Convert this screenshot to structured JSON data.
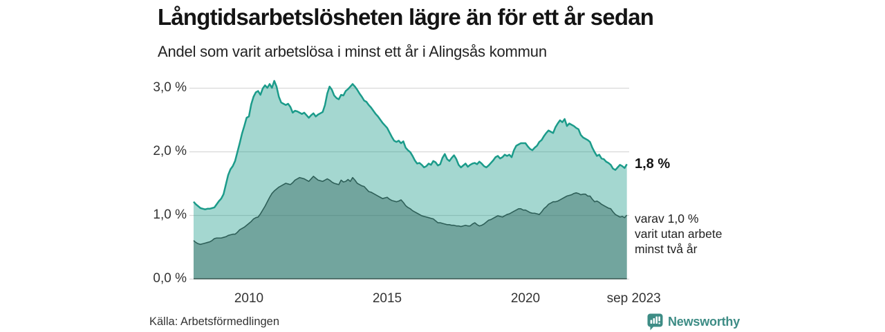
{
  "header": {
    "title": "Långtidsarbetslösheten lägre än för ett år sedan",
    "subtitle": "Andel som varit arbetslösa i minst ett år i Alingsås kommun"
  },
  "chart_data": {
    "type": "area",
    "title": "Långtidsarbetslösheten lägre än för ett år sedan",
    "subtitle": "Andel som varit arbetslösa i minst ett år i Alingsås kommun",
    "unit": "%",
    "x_start": "2008-01",
    "x_step_months": 1,
    "x_end": "2023-09",
    "ylim": [
      0,
      3.3
    ],
    "grid": "horizontal",
    "legend_position": "none",
    "yticks": [
      {
        "value": 3,
        "label": "3,0 %"
      },
      {
        "value": 2,
        "label": "2,0 %"
      },
      {
        "value": 1,
        "label": "1,0 %"
      },
      {
        "value": 0,
        "label": "0,0 %"
      }
    ],
    "xticks": [
      {
        "months_from_start": 24,
        "label": "2010"
      },
      {
        "months_from_start": 84,
        "label": "2015"
      },
      {
        "months_from_start": 144,
        "label": "2020"
      },
      {
        "months_from_start": 188,
        "label": "sep 2023",
        "end": true
      }
    ],
    "series": [
      {
        "name": "Andel som varit arbetslösa minst ett år",
        "color": "#1b9b8a",
        "fill_opacity": 0.4,
        "line_width": 2.5,
        "last_value_label": "1,8 %",
        "values": [
          1.21,
          1.17,
          1.14,
          1.11,
          1.1,
          1.09,
          1.1,
          1.1,
          1.11,
          1.12,
          1.17,
          1.22,
          1.26,
          1.33,
          1.48,
          1.63,
          1.72,
          1.77,
          1.85,
          1.99,
          2.13,
          2.28,
          2.4,
          2.53,
          2.55,
          2.74,
          2.86,
          2.93,
          2.95,
          2.89,
          2.99,
          3.04,
          3.0,
          3.06,
          3.0,
          3.11,
          3.02,
          2.86,
          2.77,
          2.75,
          2.73,
          2.75,
          2.7,
          2.61,
          2.64,
          2.63,
          2.61,
          2.59,
          2.61,
          2.57,
          2.53,
          2.57,
          2.6,
          2.55,
          2.58,
          2.6,
          2.62,
          2.73,
          2.91,
          3.02,
          2.97,
          2.88,
          2.84,
          2.82,
          2.89,
          2.88,
          2.95,
          2.98,
          3.02,
          3.06,
          3.02,
          2.97,
          2.91,
          2.86,
          2.8,
          2.78,
          2.73,
          2.69,
          2.64,
          2.59,
          2.55,
          2.5,
          2.45,
          2.41,
          2.37,
          2.3,
          2.23,
          2.17,
          2.15,
          2.17,
          2.13,
          2.16,
          2.06,
          2.02,
          1.99,
          1.93,
          1.86,
          1.81,
          1.82,
          1.79,
          1.75,
          1.77,
          1.81,
          1.79,
          1.85,
          1.83,
          1.78,
          1.8,
          1.9,
          1.96,
          1.88,
          1.85,
          1.9,
          1.94,
          1.88,
          1.79,
          1.75,
          1.78,
          1.81,
          1.76,
          1.79,
          1.81,
          1.82,
          1.8,
          1.84,
          1.81,
          1.77,
          1.75,
          1.78,
          1.82,
          1.86,
          1.91,
          1.93,
          1.89,
          1.91,
          1.95,
          1.93,
          1.95,
          1.91,
          2.02,
          2.09,
          2.11,
          2.13,
          2.13,
          2.13,
          2.08,
          2.04,
          2.02,
          2.06,
          2.09,
          2.15,
          2.18,
          2.24,
          2.29,
          2.33,
          2.31,
          2.29,
          2.38,
          2.44,
          2.49,
          2.46,
          2.51,
          2.4,
          2.44,
          2.42,
          2.4,
          2.37,
          2.35,
          2.26,
          2.22,
          2.2,
          2.18,
          2.15,
          2.06,
          1.99,
          1.93,
          1.95,
          1.89,
          1.88,
          1.84,
          1.82,
          1.79,
          1.73,
          1.71,
          1.75,
          1.79,
          1.77,
          1.74,
          1.8
        ]
      },
      {
        "name": "varav arbetslösa minst två år",
        "color": "#2e5f58",
        "fill_opacity": 0.42,
        "line_width": 1.6,
        "last_value_label": "1,0 %",
        "values": [
          0.6,
          0.57,
          0.55,
          0.54,
          0.55,
          0.56,
          0.57,
          0.58,
          0.6,
          0.63,
          0.64,
          0.64,
          0.64,
          0.65,
          0.66,
          0.68,
          0.69,
          0.7,
          0.7,
          0.73,
          0.77,
          0.79,
          0.81,
          0.84,
          0.87,
          0.9,
          0.94,
          0.96,
          0.97,
          1.02,
          1.08,
          1.14,
          1.21,
          1.28,
          1.34,
          1.38,
          1.41,
          1.44,
          1.46,
          1.48,
          1.5,
          1.49,
          1.48,
          1.51,
          1.55,
          1.57,
          1.59,
          1.58,
          1.57,
          1.55,
          1.53,
          1.57,
          1.61,
          1.58,
          1.55,
          1.54,
          1.53,
          1.55,
          1.57,
          1.55,
          1.52,
          1.5,
          1.49,
          1.48,
          1.55,
          1.52,
          1.53,
          1.56,
          1.53,
          1.59,
          1.55,
          1.5,
          1.48,
          1.46,
          1.45,
          1.41,
          1.37,
          1.36,
          1.34,
          1.32,
          1.3,
          1.28,
          1.26,
          1.27,
          1.28,
          1.25,
          1.23,
          1.22,
          1.21,
          1.22,
          1.24,
          1.2,
          1.15,
          1.12,
          1.1,
          1.07,
          1.05,
          1.03,
          1.01,
          0.99,
          0.98,
          0.97,
          0.96,
          0.95,
          0.94,
          0.91,
          0.88,
          0.88,
          0.87,
          0.86,
          0.85,
          0.85,
          0.84,
          0.84,
          0.83,
          0.83,
          0.82,
          0.83,
          0.84,
          0.83,
          0.83,
          0.86,
          0.88,
          0.85,
          0.83,
          0.84,
          0.86,
          0.89,
          0.92,
          0.93,
          0.95,
          0.97,
          0.99,
          0.98,
          0.97,
          0.99,
          1.01,
          1.02,
          1.04,
          1.06,
          1.08,
          1.1,
          1.1,
          1.08,
          1.08,
          1.06,
          1.04,
          1.03,
          1.03,
          1.02,
          1.01,
          1.05,
          1.1,
          1.13,
          1.17,
          1.19,
          1.21,
          1.21,
          1.22,
          1.24,
          1.26,
          1.28,
          1.3,
          1.31,
          1.32,
          1.34,
          1.35,
          1.34,
          1.32,
          1.33,
          1.33,
          1.3,
          1.3,
          1.25,
          1.21,
          1.22,
          1.2,
          1.17,
          1.15,
          1.13,
          1.11,
          1.1,
          1.05,
          1.01,
          0.99,
          0.97,
          0.98,
          0.96,
          1.0
        ]
      }
    ]
  },
  "annotations": {
    "end_value_label": "1,8 %",
    "secondary_line1": "varav 1,0 %",
    "secondary_line2": "varit utan arbete",
    "secondary_line3": "minst två år"
  },
  "footer": {
    "source": "Källa: Arbetsförmedlingen",
    "brand": "Newsworthy"
  },
  "colors": {
    "accent_teal": "#1b9b8a",
    "dark_teal": "#2e5f58",
    "brand_teal": "#3d8c85",
    "gridline": "#d8d8d8",
    "baseline": "#3a5a54",
    "text_dark": "#141414",
    "text_body": "#222222",
    "text_tick": "#333333"
  }
}
